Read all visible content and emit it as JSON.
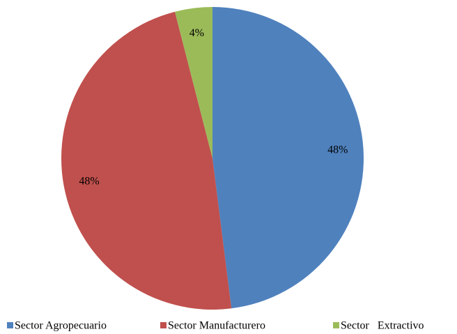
{
  "chart_data": {
    "type": "pie",
    "categories": [
      "Sector Agropecuario",
      "Sector Manufacturero",
      "Sector   Extractivo"
    ],
    "values": [
      48,
      48,
      4
    ],
    "value_labels": [
      "48%",
      "48%",
      "4%"
    ],
    "colors": [
      "#4f81bd",
      "#c0504d",
      "#9bbb59"
    ],
    "legend": "bottom"
  }
}
